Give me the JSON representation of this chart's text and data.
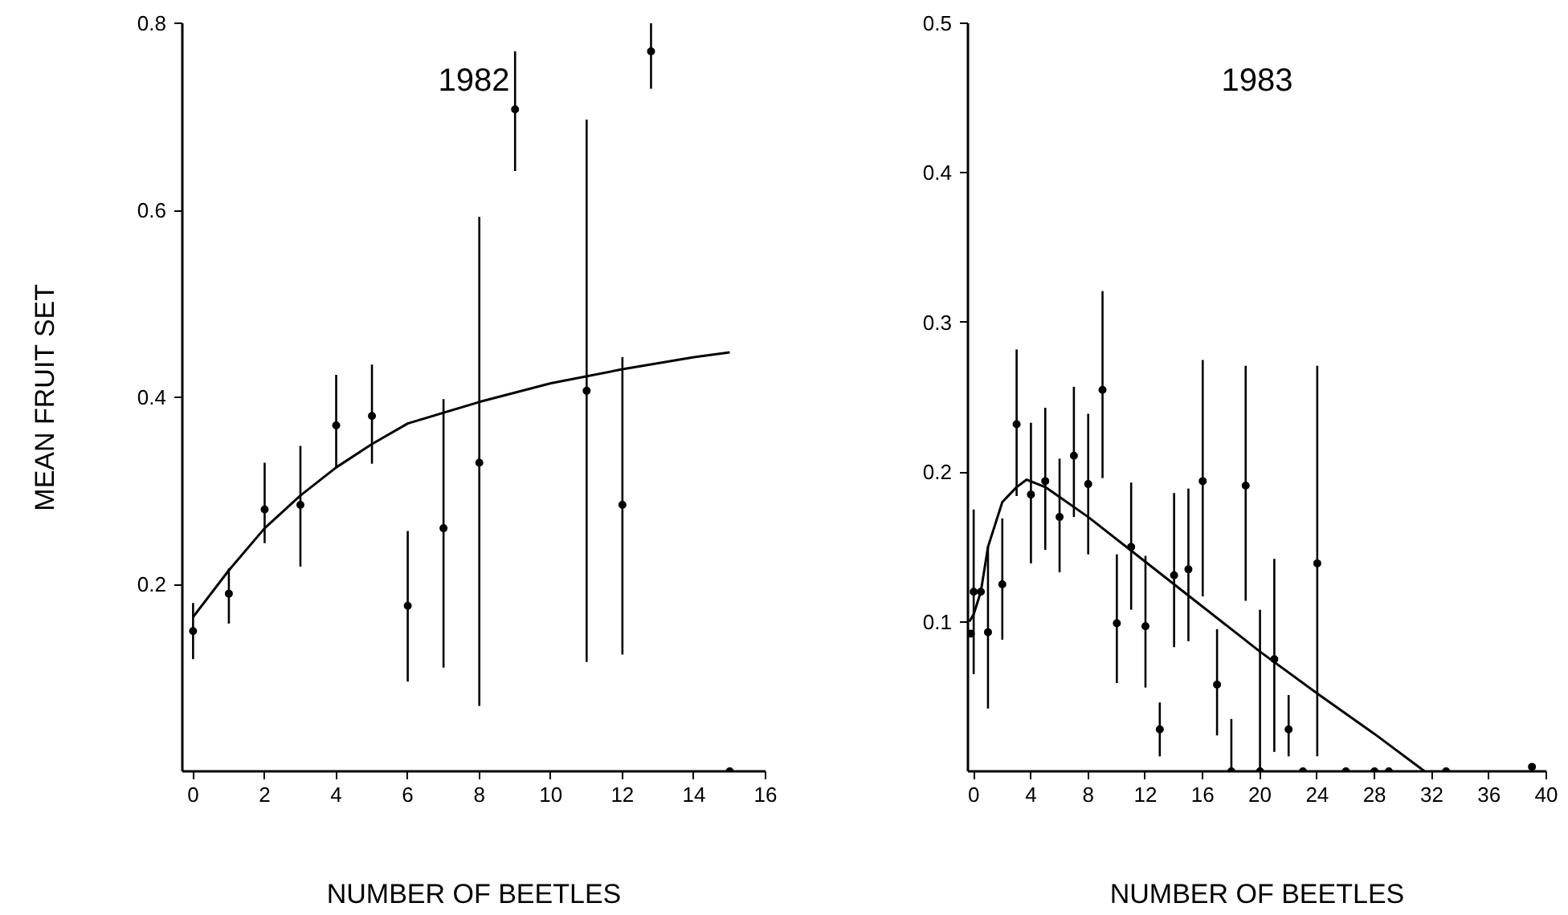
{
  "chart_data": [
    {
      "type": "scatter",
      "title": "1982",
      "xlabel": "NUMBER OF BEETLES",
      "ylabel": "MEAN FRUIT SET",
      "xlim": [
        -0.3,
        16
      ],
      "ylim": [
        0,
        0.8
      ],
      "xticks": [
        0,
        2,
        4,
        6,
        8,
        10,
        12,
        14,
        16
      ],
      "yticks": [
        0.2,
        0.4,
        0.6,
        0.8
      ],
      "series": [
        {
          "marker": "circle",
          "color": "#000000",
          "x": [
            0,
            1,
            2,
            3,
            4,
            5,
            6,
            7,
            8,
            9,
            11,
            12,
            12.8,
            15
          ],
          "values": [
            0.15,
            0.19,
            0.28,
            0.285,
            0.37,
            0.38,
            0.177,
            0.26,
            0.33,
            0.708,
            0.407,
            0.285,
            0.77,
            0
          ],
          "errors": [
            [
              0.12,
              0.18
            ],
            [
              0.158,
              0.217
            ],
            [
              0.244,
              0.33
            ],
            [
              0.219,
              0.348
            ],
            [
              0.325,
              0.424
            ],
            [
              0.329,
              0.435
            ],
            [
              0.096,
              0.257
            ],
            [
              0.111,
              0.398
            ],
            [
              0.07,
              0.593
            ],
            [
              0.642,
              0.77
            ],
            [
              0.117,
              0.697
            ],
            [
              0.125,
              0.443
            ],
            [
              0.73,
              0.8
            ],
            null
          ]
        },
        {
          "type": "line",
          "color": "#000000",
          "x": [
            0,
            1,
            2,
            3,
            4,
            5,
            6,
            8,
            10,
            12,
            14,
            15
          ],
          "values": [
            0.165,
            0.215,
            0.26,
            0.295,
            0.325,
            0.35,
            0.372,
            0.395,
            0.415,
            0.43,
            0.443,
            0.448
          ]
        }
      ]
    },
    {
      "type": "scatter",
      "title": "1983",
      "xlabel": "NUMBER OF BEETLES",
      "xlim": [
        -0.4,
        40
      ],
      "ylim": [
        0,
        0.5
      ],
      "xticks": [
        0,
        4,
        8,
        12,
        16,
        20,
        24,
        28,
        32,
        36,
        40
      ],
      "yticks": [
        0.1,
        0.2,
        0.3,
        0.4,
        0.5
      ],
      "series": [
        {
          "marker": "circle",
          "color": "#000000",
          "x": [
            -0.2,
            0,
            0.5,
            1,
            2,
            3,
            4,
            5,
            6,
            7,
            8,
            9,
            10,
            11,
            12,
            13,
            14,
            15,
            16,
            17,
            18,
            19,
            20,
            21,
            22,
            23,
            24,
            26,
            28,
            29,
            33,
            39
          ],
          "values": [
            0.092,
            0.12,
            0.12,
            0.093,
            0.125,
            0.232,
            0.185,
            0.194,
            0.17,
            0.211,
            0.192,
            0.255,
            0.099,
            0.15,
            0.097,
            0.028,
            0.131,
            0.135,
            0.194,
            0.058,
            0,
            0.191,
            0,
            0.075,
            0.028,
            0,
            0.139,
            0,
            0,
            0,
            0,
            0.003
          ],
          "errors": [
            null,
            [
              0.065,
              0.175
            ],
            null,
            [
              0.042,
              0.15
            ],
            [
              0.088,
              0.169
            ],
            [
              0.184,
              0.282
            ],
            [
              0.139,
              0.233
            ],
            [
              0.148,
              0.243
            ],
            [
              0.133,
              0.209
            ],
            [
              0.17,
              0.257
            ],
            [
              0.145,
              0.239
            ],
            [
              0.196,
              0.321
            ],
            [
              0.059,
              0.145
            ],
            [
              0.108,
              0.193
            ],
            [
              0.056,
              0.144
            ],
            [
              0.01,
              0.046
            ],
            [
              0.083,
              0.186
            ],
            [
              0.087,
              0.189
            ],
            [
              0.117,
              0.275
            ],
            [
              0.024,
              0.095
            ],
            [
              0,
              0.035
            ],
            [
              0.114,
              0.271
            ],
            [
              0,
              0.108
            ],
            [
              0.013,
              0.142
            ],
            [
              0.01,
              0.051
            ],
            null,
            [
              0.01,
              0.271
            ],
            null,
            null,
            null,
            null,
            null
          ]
        },
        {
          "type": "line",
          "color": "#000000",
          "x": [
            -0.3,
            0,
            0.5,
            1,
            2,
            3,
            3.7,
            5,
            8,
            12,
            16,
            20,
            24,
            28,
            31.5
          ],
          "values": [
            0.1,
            0.105,
            0.12,
            0.15,
            0.18,
            0.19,
            0.195,
            0.19,
            0.17,
            0.14,
            0.11,
            0.08,
            0.052,
            0.025,
            0
          ]
        }
      ]
    }
  ]
}
